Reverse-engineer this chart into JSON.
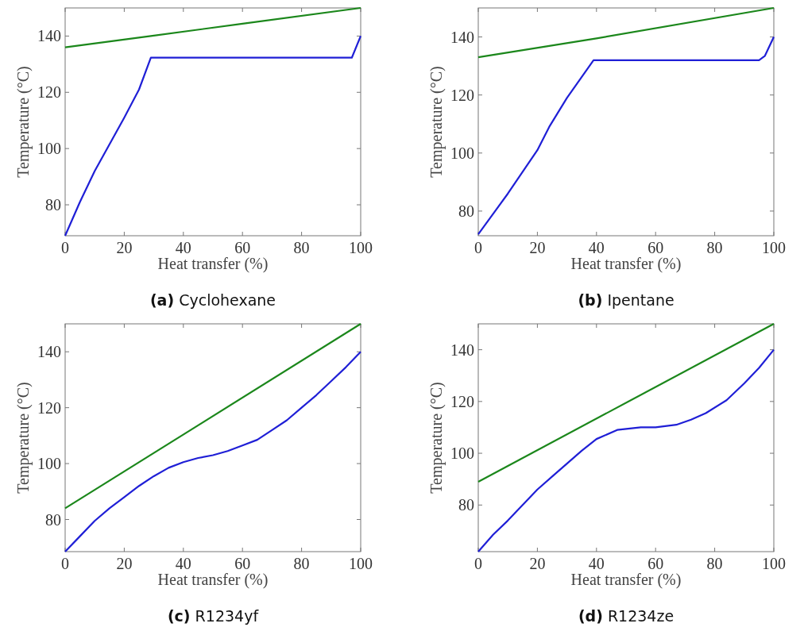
{
  "chart_data": [
    {
      "type": "line",
      "title": "(a) Cyclohexane",
      "xlabel": "Heat transfer (%)",
      "ylabel": "Temperature (°C)",
      "xlim": [
        0,
        100
      ],
      "xticks": [
        0,
        20,
        40,
        60,
        80,
        100
      ],
      "ylim": [
        69,
        150
      ],
      "yticks": [
        80,
        100,
        120,
        140
      ],
      "series": [
        {
          "color": "#1f1fd6",
          "x": [
            0,
            5,
            10,
            20,
            25,
            29,
            97,
            100
          ],
          "values": [
            69,
            81,
            92,
            111,
            121,
            132.3,
            132.3,
            140
          ]
        },
        {
          "color": "#1b871b",
          "x": [
            0,
            29,
            60,
            100
          ],
          "values": [
            136,
            140,
            144.4,
            150
          ]
        }
      ]
    },
    {
      "type": "line",
      "title": "(b) Ipentane",
      "xlabel": "Heat transfer (%)",
      "ylabel": "Temperature (°C)",
      "xlim": [
        0,
        100
      ],
      "xticks": [
        0,
        20,
        40,
        60,
        80,
        100
      ],
      "ylim": [
        71.5,
        150
      ],
      "yticks": [
        80,
        100,
        120,
        140
      ],
      "series": [
        {
          "color": "#1f1fd6",
          "x": [
            0,
            10,
            20,
            24,
            30,
            39,
            95,
            97,
            100
          ],
          "values": [
            72,
            86,
            101,
            109,
            119,
            132,
            132,
            133.5,
            140
          ]
        },
        {
          "color": "#1b871b",
          "x": [
            0,
            40,
            100
          ],
          "values": [
            133,
            139.5,
            150
          ]
        }
      ]
    },
    {
      "type": "line",
      "title": "(c) R1234yf",
      "xlabel": "Heat transfer (%)",
      "ylabel": "Temperature (°C)",
      "xlim": [
        0,
        100
      ],
      "xticks": [
        0,
        20,
        40,
        60,
        80,
        100
      ],
      "ylim": [
        68.5,
        150
      ],
      "yticks": [
        80,
        100,
        120,
        140
      ],
      "series": [
        {
          "color": "#1f1fd6",
          "x": [
            0,
            5,
            10,
            15,
            20,
            25,
            30,
            35,
            40,
            45,
            50,
            55,
            60,
            65,
            70,
            75,
            80,
            85,
            90,
            95,
            100
          ],
          "values": [
            68.5,
            74,
            79.5,
            84,
            88,
            92,
            95.5,
            98.5,
            100.5,
            102,
            103,
            104.5,
            106.5,
            108.5,
            112,
            115.5,
            120,
            124.5,
            129.5,
            134.5,
            140
          ]
        },
        {
          "color": "#1b871b",
          "x": [
            0,
            100
          ],
          "values": [
            84,
            150
          ]
        }
      ]
    },
    {
      "type": "line",
      "title": "(d) R1234ze",
      "xlabel": "Heat transfer (%)",
      "ylabel": "Temperature (°C)",
      "xlim": [
        0,
        100
      ],
      "xticks": [
        0,
        20,
        40,
        60,
        80,
        100
      ],
      "ylim": [
        62,
        150
      ],
      "yticks": [
        80,
        100,
        120,
        140
      ],
      "series": [
        {
          "color": "#1f1fd6",
          "x": [
            0,
            5,
            10,
            15,
            20,
            25,
            30,
            35,
            40,
            47,
            55,
            60,
            67,
            72,
            77,
            84,
            90,
            95,
            100
          ],
          "values": [
            62,
            68.5,
            74,
            80,
            86,
            91,
            96,
            101,
            105.5,
            109,
            110,
            110,
            111,
            113,
            115.5,
            120.5,
            127,
            133,
            140
          ]
        },
        {
          "color": "#1b871b",
          "x": [
            0,
            100
          ],
          "values": [
            89,
            150
          ]
        }
      ]
    }
  ]
}
